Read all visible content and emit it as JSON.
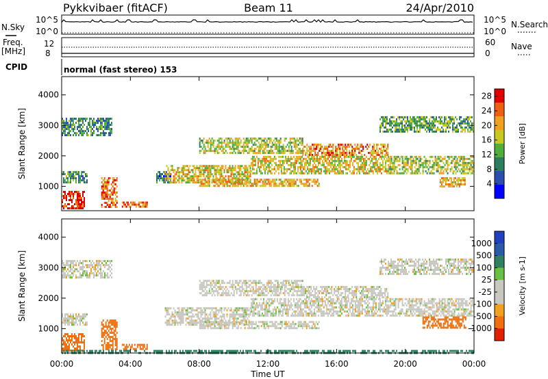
{
  "header": {
    "station": "Pykkvibaer (fitACF)",
    "beam": "Beam 11",
    "date": "24/Apr/2010"
  },
  "strips": {
    "nsky_label": "N.Sky",
    "nsky_ticks": [
      "10^5",
      "10^0"
    ],
    "nsearch_label": "N.Search",
    "nsearch_ticks": [
      "10^5",
      "10^0"
    ],
    "freq_label": "Freq.",
    "freq_unit": "[MHz]",
    "freq_ticks": [
      "12",
      "8"
    ],
    "nave_label": "Nave",
    "nave_ticks": [
      "60",
      "0"
    ],
    "cpid_label": "CPID",
    "mode_text": "normal (fast stereo) 153"
  },
  "colors": {
    "power_scale": [
      "#0000ff",
      "#2a4fb0",
      "#2e7d5e",
      "#4fae3c",
      "#c8c820",
      "#f0a020",
      "#ee6010",
      "#e00000"
    ],
    "velocity_scale": [
      "#2040c0",
      "#2a5aa8",
      "#2e8060",
      "#6ac040",
      "#c8c8c0",
      "#c8c8c0",
      "#f0a020",
      "#f07010",
      "#e02000"
    ]
  },
  "chart_data": [
    {
      "type": "heatmap",
      "title": "",
      "xlabel": "Time UT",
      "ylabel": "Slant Range [km]",
      "x_ticks": [
        "00:00",
        "04:00",
        "08:00",
        "12:00",
        "16:00",
        "20:00",
        "00:00"
      ],
      "y_ticks": [
        "1000",
        "2000",
        "3000",
        "4000"
      ],
      "xlim": [
        0,
        24
      ],
      "ylim": [
        200,
        4600
      ],
      "colorbar_label": "Power [dB]",
      "colorbar_ticks": [
        "4",
        "8",
        "12",
        "16",
        "20",
        "24",
        "28"
      ],
      "colorbar_range": [
        0,
        30
      ],
      "echo_regions": [
        {
          "t_start": 0.0,
          "t_end": 2.9,
          "r_low": 2700,
          "r_high": 3250,
          "value": 10
        },
        {
          "t_start": 0.0,
          "t_end": 1.5,
          "r_low": 1100,
          "r_high": 1500,
          "value": 10
        },
        {
          "t_start": 0.0,
          "t_end": 1.3,
          "r_low": 250,
          "r_high": 850,
          "value": 28
        },
        {
          "t_start": 2.3,
          "t_end": 3.2,
          "r_low": 300,
          "r_high": 1300,
          "value": 24
        },
        {
          "t_start": 3.5,
          "t_end": 5.0,
          "r_low": 350,
          "r_high": 500,
          "value": 24
        },
        {
          "t_start": 5.5,
          "t_end": 6.3,
          "r_low": 1100,
          "r_high": 1500,
          "value": 8
        },
        {
          "t_start": 6.0,
          "t_end": 11.0,
          "r_low": 1150,
          "r_high": 1700,
          "value": 18
        },
        {
          "t_start": 8.0,
          "t_end": 15.0,
          "r_low": 1000,
          "r_high": 1250,
          "value": 20
        },
        {
          "t_start": 8.0,
          "t_end": 14.0,
          "r_low": 2100,
          "r_high": 2600,
          "value": 16
        },
        {
          "t_start": 11.0,
          "t_end": 19.0,
          "r_low": 1400,
          "r_high": 2000,
          "value": 18
        },
        {
          "t_start": 14.0,
          "t_end": 19.0,
          "r_low": 2000,
          "r_high": 2400,
          "value": 22
        },
        {
          "t_start": 19.0,
          "t_end": 24.0,
          "r_low": 1450,
          "r_high": 2000,
          "value": 16
        },
        {
          "t_start": 18.5,
          "t_end": 24.0,
          "r_low": 2800,
          "r_high": 3300,
          "value": 12
        },
        {
          "t_start": 22.0,
          "t_end": 23.5,
          "r_low": 1000,
          "r_high": 1300,
          "value": 20
        }
      ]
    },
    {
      "type": "heatmap",
      "title": "",
      "xlabel": "Time UT",
      "ylabel": "Slant Range [km]",
      "x_ticks": [
        "00:00",
        "04:00",
        "08:00",
        "12:00",
        "16:00",
        "20:00",
        "00:00"
      ],
      "y_ticks": [
        "1000",
        "2000",
        "3000",
        "4000"
      ],
      "xlim": [
        0,
        24
      ],
      "ylim": [
        200,
        4600
      ],
      "colorbar_label": "Velocity [m s-1]",
      "colorbar_ticks": [
        "1000",
        "500",
        "100",
        "25",
        "-25",
        "-100",
        "-500",
        "-1000"
      ],
      "echo_regions": [
        {
          "t_start": 0.0,
          "t_end": 2.9,
          "r_low": 2700,
          "r_high": 3250,
          "value": 0
        },
        {
          "t_start": 0.0,
          "t_end": 1.5,
          "r_low": 1100,
          "r_high": 1500,
          "value": 0
        },
        {
          "t_start": 0.0,
          "t_end": 1.3,
          "r_low": 250,
          "r_high": 850,
          "value": -200
        },
        {
          "t_start": 2.3,
          "t_end": 3.2,
          "r_low": 300,
          "r_high": 1300,
          "value": -200
        },
        {
          "t_start": 3.5,
          "t_end": 5.0,
          "r_low": 350,
          "r_high": 500,
          "value": -150
        },
        {
          "t_start": 6.0,
          "t_end": 11.0,
          "r_low": 1150,
          "r_high": 1700,
          "value": 0
        },
        {
          "t_start": 8.0,
          "t_end": 15.0,
          "r_low": 1000,
          "r_high": 1250,
          "value": 0
        },
        {
          "t_start": 8.0,
          "t_end": 14.0,
          "r_low": 2100,
          "r_high": 2600,
          "value": 0
        },
        {
          "t_start": 11.0,
          "t_end": 19.0,
          "r_low": 1400,
          "r_high": 2000,
          "value": 0
        },
        {
          "t_start": 14.0,
          "t_end": 19.0,
          "r_low": 2000,
          "r_high": 2400,
          "value": 0
        },
        {
          "t_start": 19.0,
          "t_end": 24.0,
          "r_low": 1450,
          "r_high": 2000,
          "value": 0
        },
        {
          "t_start": 18.5,
          "t_end": 24.0,
          "r_low": 2800,
          "r_high": 3300,
          "value": 0
        },
        {
          "t_start": 21.0,
          "t_end": 23.5,
          "r_low": 1000,
          "r_high": 1400,
          "value": -200
        },
        {
          "t_start": 0.0,
          "t_end": 24.0,
          "r_low": 200,
          "r_high": 300,
          "value": 150
        }
      ]
    }
  ]
}
